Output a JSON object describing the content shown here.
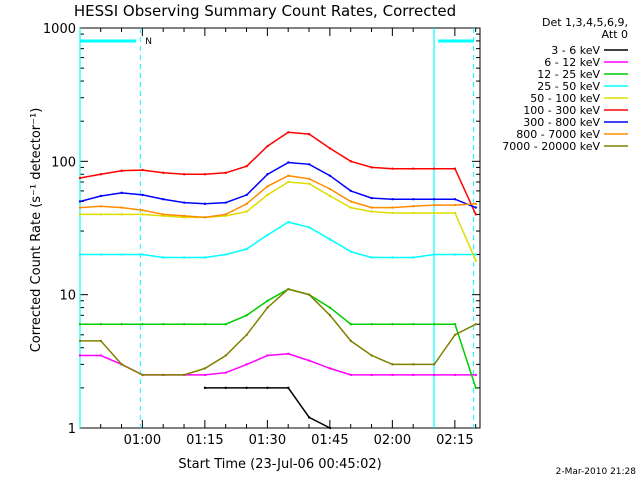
{
  "chart_data": {
    "type": "line",
    "title": "HESSI Observing Summary Count Rates, Corrected",
    "xlabel": "Start Time (23-Jul-06 00:45:02)",
    "ylabel": "Corrected Count Rate (s⁻¹ detector⁻¹)",
    "yscale": "log",
    "ylim": [
      1,
      1000
    ],
    "xlim": [
      "00:45:02",
      "02:21:00"
    ],
    "xticks": [
      "01:00",
      "01:15",
      "01:30",
      "01:45",
      "02:00",
      "02:15"
    ],
    "yticks": [
      "1",
      "10",
      "100",
      "1000"
    ],
    "grid": false,
    "legend_position": "top-right",
    "legend_header": [
      "Det 1,3,4,5,6,9,",
      "Att 0"
    ],
    "footer_date": "2-Mar-2010 21:28",
    "annotations": [
      {
        "text": "N",
        "x": "00:59:30"
      }
    ],
    "x_minutes_since_start": [
      0,
      5,
      10,
      15,
      20,
      25,
      30,
      35,
      40,
      45,
      50,
      55,
      60,
      65,
      70,
      75,
      80,
      85,
      90,
      95
    ],
    "series": [
      {
        "name": "3 - 6 keV",
        "color": "#000000",
        "values": [
          null,
          null,
          null,
          null,
          null,
          null,
          2,
          2,
          2,
          2,
          2,
          1.2,
          1,
          null,
          null,
          null,
          null,
          null,
          null,
          null
        ]
      },
      {
        "name": "6 - 12 keV",
        "color": "#ff00ff",
        "values": [
          3.5,
          3.5,
          3,
          2.5,
          2.5,
          2.5,
          2.5,
          2.6,
          3,
          3.5,
          3.6,
          3.2,
          2.8,
          2.5,
          2.5,
          2.5,
          2.5,
          2.5,
          2.5,
          2.5
        ]
      },
      {
        "name": "12 - 25 keV",
        "color": "#00cc00",
        "values": [
          6,
          6,
          6,
          6,
          6,
          6,
          6,
          6,
          7,
          9,
          11,
          10,
          8,
          6,
          6,
          6,
          6,
          6,
          6,
          2
        ]
      },
      {
        "name": "25 - 50 keV",
        "color": "#00ffff",
        "values": [
          20,
          20,
          20,
          20,
          19,
          19,
          19,
          20,
          22,
          28,
          35,
          32,
          26,
          21,
          19,
          19,
          19,
          20,
          20,
          20
        ]
      },
      {
        "name": "50 - 100 keV",
        "color": "#dddd00",
        "values": [
          40,
          40,
          40,
          40,
          39,
          38,
          38,
          39,
          42,
          56,
          70,
          68,
          55,
          45,
          42,
          41,
          41,
          41,
          41,
          18
        ]
      },
      {
        "name": "100 - 300 keV",
        "color": "#ff0000",
        "values": [
          75,
          80,
          85,
          86,
          82,
          80,
          80,
          82,
          92,
          130,
          165,
          160,
          125,
          100,
          90,
          88,
          88,
          88,
          88,
          40
        ]
      },
      {
        "name": "300 - 800 keV",
        "color": "#0000ff",
        "values": [
          50,
          55,
          58,
          56,
          52,
          49,
          48,
          49,
          56,
          80,
          98,
          95,
          78,
          60,
          53,
          52,
          52,
          52,
          52,
          45
        ]
      },
      {
        "name": "800 - 7000 keV",
        "color": "#ff8c00",
        "values": [
          45,
          46,
          45,
          43,
          40,
          39,
          38,
          40,
          48,
          65,
          78,
          74,
          62,
          50,
          45,
          45,
          46,
          47,
          47,
          48
        ]
      },
      {
        "name": "7000 - 20000 keV",
        "color": "#808000",
        "values": [
          4.5,
          4.5,
          3,
          2.5,
          2.5,
          2.5,
          2.8,
          3.5,
          5,
          8,
          11,
          10,
          7,
          4.5,
          3.5,
          3,
          3,
          3,
          5,
          6
        ]
      }
    ]
  }
}
